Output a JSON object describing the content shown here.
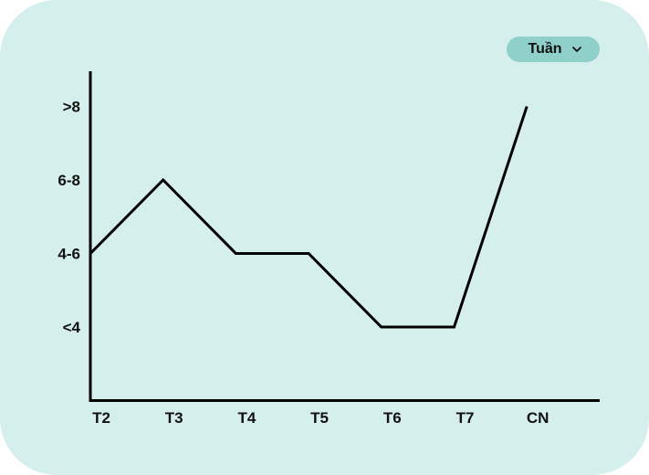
{
  "filter": {
    "label": "Tuần",
    "icon": "chevron-down-icon"
  },
  "colors": {
    "card_background": "#d4efec",
    "selector_background": "#8fd1ca",
    "line": "#000000"
  },
  "chart_data": {
    "type": "line",
    "title": "",
    "xlabel": "",
    "ylabel": "",
    "categories": [
      "T2",
      "T3",
      "T4",
      "T5",
      "T6",
      "T7",
      "CN"
    ],
    "y_levels": [
      "<4",
      "4-6",
      "6-8",
      ">8"
    ],
    "ylim": [
      0,
      4.3
    ],
    "grid": false,
    "legend": "none",
    "series": [
      {
        "values": [
          2.0,
          3.0,
          2.0,
          2.0,
          1.0,
          1.0,
          4.0
        ]
      }
    ]
  }
}
